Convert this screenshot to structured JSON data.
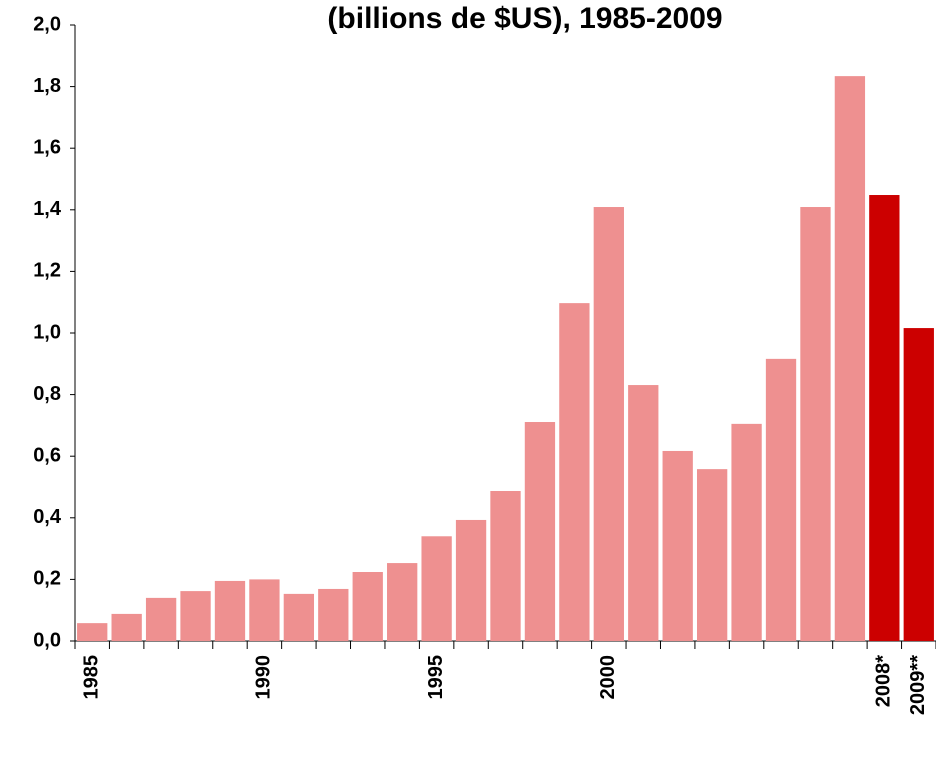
{
  "chart_data": {
    "type": "bar",
    "title": "(billions de $US), 1985-2009",
    "categories": [
      "1985",
      null,
      null,
      null,
      null,
      "1990",
      null,
      null,
      null,
      null,
      "1995",
      null,
      null,
      null,
      null,
      "2000",
      null,
      null,
      null,
      null,
      null,
      null,
      null,
      "2008*",
      "2009**"
    ],
    "values": [
      0.058,
      0.088,
      0.14,
      0.162,
      0.195,
      0.2,
      0.153,
      0.169,
      0.224,
      0.253,
      0.34,
      0.393,
      0.487,
      0.711,
      1.097,
      1.409,
      0.831,
      0.617,
      0.558,
      0.705,
      0.916,
      1.409,
      1.834,
      1.448,
      1.016
    ],
    "colors": [
      "#ee9090",
      "#ee9090",
      "#ee9090",
      "#ee9090",
      "#ee9090",
      "#ee9090",
      "#ee9090",
      "#ee9090",
      "#ee9090",
      "#ee9090",
      "#ee9090",
      "#ee9090",
      "#ee9090",
      "#ee9090",
      "#ee9090",
      "#ee9090",
      "#ee9090",
      "#ee9090",
      "#ee9090",
      "#ee9090",
      "#ee9090",
      "#ee9090",
      "#ee9090",
      "#cc0000",
      "#cc0000"
    ],
    "ylim": [
      0,
      2
    ],
    "yticks": [
      {
        "value": 0,
        "label": "0,0"
      },
      {
        "value": 0.2,
        "label": "0,2"
      },
      {
        "value": 0.4,
        "label": "0,4"
      },
      {
        "value": 0.6,
        "label": "0,6"
      },
      {
        "value": 0.8,
        "label": "0,8"
      },
      {
        "value": 1.0,
        "label": "1,0"
      },
      {
        "value": 1.2,
        "label": "1,2"
      },
      {
        "value": 1.4,
        "label": "1,4"
      },
      {
        "value": 1.6,
        "label": "1,6"
      },
      {
        "value": 1.8,
        "label": "1,8"
      },
      {
        "value": 2.0,
        "label": "2,0"
      }
    ],
    "grid": false
  }
}
